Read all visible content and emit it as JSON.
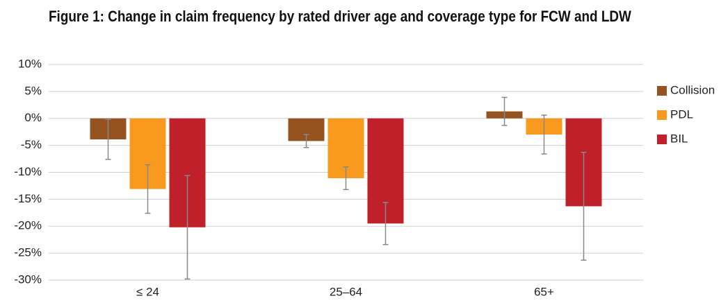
{
  "chart_data": {
    "type": "bar",
    "title": "Figure 1: Change in claim frequency by rated driver age and coverage type for FCW and LDW",
    "categories": [
      "≤ 24",
      "25–64",
      "65+"
    ],
    "series": [
      {
        "name": "Collision",
        "color": "#955322",
        "values": [
          -3.9,
          -4.2,
          1.3
        ],
        "errors": [
          3.7,
          1.2,
          2.6
        ]
      },
      {
        "name": "PDL",
        "color": "#f79a1e",
        "values": [
          -13.1,
          -11.1,
          -3.0
        ],
        "errors": [
          4.5,
          2.1,
          3.6
        ]
      },
      {
        "name": "BIL",
        "color": "#c0202a",
        "values": [
          -20.2,
          -19.5,
          -16.3
        ],
        "errors": [
          9.6,
          3.9,
          10.0
        ]
      }
    ],
    "ylim": [
      -30,
      10
    ],
    "yticks": [
      {
        "value": 10,
        "label": "10%"
      },
      {
        "value": 5,
        "label": "5%"
      },
      {
        "value": 0,
        "label": "0%"
      },
      {
        "value": -5,
        "label": "-5%"
      },
      {
        "value": -10,
        "label": "-10%"
      },
      {
        "value": -15,
        "label": "-15%"
      },
      {
        "value": -20,
        "label": "-20%"
      },
      {
        "value": -25,
        "label": "-25%"
      },
      {
        "value": -30,
        "label": "-30%"
      }
    ],
    "grid": true,
    "legend": "right"
  }
}
